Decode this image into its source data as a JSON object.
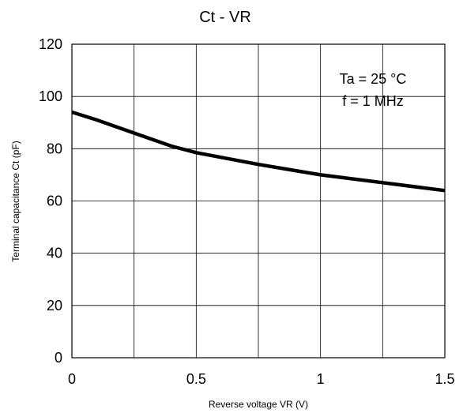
{
  "chart_data": {
    "type": "line",
    "title": "Ct - VR",
    "xlabel": "Reverse voltage VR (V)",
    "ylabel": "Terminal capacitance Ct (pF)",
    "xlim": [
      0,
      1.5
    ],
    "ylim": [
      0,
      120
    ],
    "x_ticks": [
      0,
      0.5,
      1,
      1.5
    ],
    "x_tick_labels": [
      "0",
      "0.5",
      "1",
      "1.5"
    ],
    "y_ticks": [
      0,
      20,
      40,
      60,
      80,
      100,
      120
    ],
    "y_tick_labels": [
      "0",
      "20",
      "40",
      "60",
      "80",
      "100",
      "120"
    ],
    "x_minor_grid": [
      0.25,
      0.75,
      1.25
    ],
    "grid": true,
    "annotations": [
      "Ta = 25 °C",
      "f = 1 MHz"
    ],
    "series": [
      {
        "x": [
          0,
          0.1,
          0.25,
          0.4,
          0.5,
          0.75,
          1.0,
          1.25,
          1.5
        ],
        "y": [
          94,
          91,
          86,
          81,
          78.5,
          74,
          70,
          67,
          64
        ]
      }
    ],
    "colors": {
      "line": "#000000",
      "grid": "#000000",
      "background": "#ffffff"
    }
  }
}
